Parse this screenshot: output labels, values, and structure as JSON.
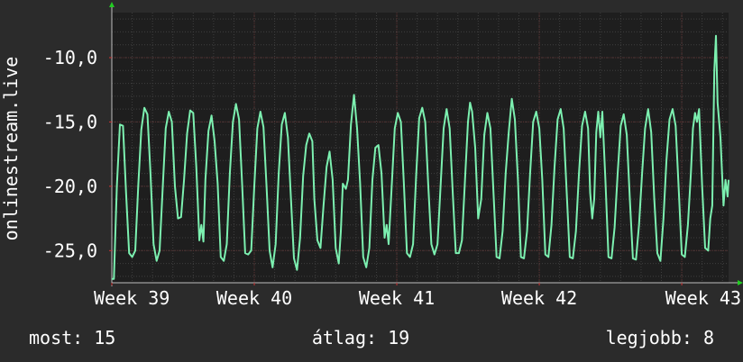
{
  "chart_data": {
    "type": "line",
    "ylabel": "onlinestream.live",
    "ylim": [
      -27.5,
      -6.5
    ],
    "y_ticks": [
      {
        "value": -10,
        "label": "-10,0"
      },
      {
        "value": -15,
        "label": "-15,0"
      },
      {
        "value": -20,
        "label": "-20,0"
      },
      {
        "value": -25,
        "label": "-25,0"
      }
    ],
    "x_ticks": [
      {
        "value": 0,
        "label": "Week 39"
      },
      {
        "value": 7,
        "label": "Week 40"
      },
      {
        "value": 14,
        "label": "Week 41"
      },
      {
        "value": 21,
        "label": "Week 42"
      },
      {
        "value": 28,
        "label": "Week 43"
      }
    ],
    "xlim": [
      0,
      30.3
    ],
    "grid": true,
    "colors": {
      "background": "#2b2b2b",
      "plot_background": "#1e1e1e",
      "grid": "#3f3f3f",
      "line": "#7cf0b0",
      "axis_arrow": "#22cc22",
      "tick_mark": "#cc3333"
    },
    "series": [
      {
        "values": [
          [
            0.0,
            -27.2
          ],
          [
            0.1,
            -27.2
          ],
          [
            0.25,
            -20
          ],
          [
            0.4,
            -15.2
          ],
          [
            0.55,
            -15.3
          ],
          [
            0.7,
            -20.5
          ],
          [
            0.85,
            -25.2
          ],
          [
            1.0,
            -25.5
          ],
          [
            1.15,
            -25.0
          ],
          [
            1.3,
            -20.0
          ],
          [
            1.45,
            -15.6
          ],
          [
            1.6,
            -13.9
          ],
          [
            1.75,
            -14.4
          ],
          [
            1.9,
            -19.0
          ],
          [
            2.05,
            -24.5
          ],
          [
            2.2,
            -25.8
          ],
          [
            2.35,
            -25.0
          ],
          [
            2.5,
            -20.2
          ],
          [
            2.65,
            -15.5
          ],
          [
            2.8,
            -14.2
          ],
          [
            2.95,
            -15.0
          ],
          [
            3.1,
            -20.0
          ],
          [
            3.25,
            -22.5
          ],
          [
            3.4,
            -22.4
          ],
          [
            3.55,
            -19.5
          ],
          [
            3.7,
            -15.9
          ],
          [
            3.85,
            -14.1
          ],
          [
            4.0,
            -14.3
          ],
          [
            4.15,
            -18.5
          ],
          [
            4.3,
            -24.2
          ],
          [
            4.4,
            -23.0
          ],
          [
            4.5,
            -24.3
          ],
          [
            4.6,
            -19.5
          ],
          [
            4.75,
            -15.7
          ],
          [
            4.9,
            -14.5
          ],
          [
            5.05,
            -16.5
          ],
          [
            5.2,
            -19.8
          ],
          [
            5.35,
            -25.5
          ],
          [
            5.5,
            -25.8
          ],
          [
            5.65,
            -24.5
          ],
          [
            5.8,
            -19.0
          ],
          [
            5.95,
            -15.0
          ],
          [
            6.1,
            -13.6
          ],
          [
            6.25,
            -14.8
          ],
          [
            6.4,
            -19.8
          ],
          [
            6.55,
            -25.2
          ],
          [
            6.7,
            -25.3
          ],
          [
            6.85,
            -25.0
          ],
          [
            7.0,
            -20.0
          ],
          [
            7.15,
            -15.5
          ],
          [
            7.3,
            -14.2
          ],
          [
            7.45,
            -15.4
          ],
          [
            7.6,
            -20.0
          ],
          [
            7.75,
            -25.0
          ],
          [
            7.9,
            -26.3
          ],
          [
            8.05,
            -24.5
          ],
          [
            8.2,
            -19.0
          ],
          [
            8.35,
            -15.2
          ],
          [
            8.5,
            -14.3
          ],
          [
            8.65,
            -16.2
          ],
          [
            8.8,
            -21.0
          ],
          [
            8.95,
            -25.6
          ],
          [
            9.1,
            -26.5
          ],
          [
            9.25,
            -24.0
          ],
          [
            9.4,
            -19.2
          ],
          [
            9.55,
            -16.8
          ],
          [
            9.7,
            -15.9
          ],
          [
            9.85,
            -16.5
          ],
          [
            9.95,
            -21.0
          ],
          [
            10.1,
            -24.2
          ],
          [
            10.25,
            -24.8
          ],
          [
            10.4,
            -21.5
          ],
          [
            10.55,
            -18.5
          ],
          [
            10.7,
            -17.3
          ],
          [
            10.85,
            -19.5
          ],
          [
            11.0,
            -24.8
          ],
          [
            11.15,
            -26.0
          ],
          [
            11.25,
            -23.5
          ],
          [
            11.35,
            -19.8
          ],
          [
            11.5,
            -20.2
          ],
          [
            11.6,
            -19.5
          ],
          [
            11.75,
            -15.2
          ],
          [
            11.9,
            -12.9
          ],
          [
            12.05,
            -15.5
          ],
          [
            12.2,
            -19.8
          ],
          [
            12.35,
            -25.5
          ],
          [
            12.5,
            -26.3
          ],
          [
            12.65,
            -24.8
          ],
          [
            12.8,
            -19.5
          ],
          [
            12.95,
            -17.0
          ],
          [
            13.1,
            -16.8
          ],
          [
            13.25,
            -19.0
          ],
          [
            13.4,
            -24.0
          ],
          [
            13.5,
            -23.0
          ],
          [
            13.6,
            -24.5
          ],
          [
            13.75,
            -20.0
          ],
          [
            13.9,
            -15.5
          ],
          [
            14.05,
            -14.3
          ],
          [
            14.2,
            -15.0
          ],
          [
            14.35,
            -19.8
          ],
          [
            14.5,
            -25.2
          ],
          [
            14.65,
            -25.5
          ],
          [
            14.8,
            -24.5
          ],
          [
            14.95,
            -19.2
          ],
          [
            15.1,
            -14.7
          ],
          [
            15.25,
            -13.9
          ],
          [
            15.4,
            -15.0
          ],
          [
            15.55,
            -20.0
          ],
          [
            15.7,
            -24.5
          ],
          [
            15.85,
            -25.3
          ],
          [
            16.0,
            -24.5
          ],
          [
            16.15,
            -20.0
          ],
          [
            16.3,
            -15.5
          ],
          [
            16.45,
            -14.0
          ],
          [
            16.6,
            -15.5
          ],
          [
            16.75,
            -20.5
          ],
          [
            16.9,
            -25.2
          ],
          [
            17.05,
            -25.2
          ],
          [
            17.2,
            -24.2
          ],
          [
            17.35,
            -19.5
          ],
          [
            17.5,
            -15.0
          ],
          [
            17.6,
            -13.5
          ],
          [
            17.7,
            -14.2
          ],
          [
            17.85,
            -17.0
          ],
          [
            18.0,
            -22.5
          ],
          [
            18.15,
            -21.0
          ],
          [
            18.3,
            -16.0
          ],
          [
            18.45,
            -14.3
          ],
          [
            18.6,
            -15.5
          ],
          [
            18.75,
            -20.5
          ],
          [
            18.9,
            -25.5
          ],
          [
            19.05,
            -25.6
          ],
          [
            19.2,
            -23.5
          ],
          [
            19.35,
            -19.0
          ],
          [
            19.5,
            -15.8
          ],
          [
            19.65,
            -13.2
          ],
          [
            19.8,
            -14.8
          ],
          [
            19.95,
            -19.5
          ],
          [
            20.1,
            -25.5
          ],
          [
            20.25,
            -25.6
          ],
          [
            20.4,
            -23.5
          ],
          [
            20.55,
            -19.0
          ],
          [
            20.7,
            -15.0
          ],
          [
            20.85,
            -14.2
          ],
          [
            21.0,
            -15.5
          ],
          [
            21.15,
            -19.5
          ],
          [
            21.3,
            -25.3
          ],
          [
            21.45,
            -25.5
          ],
          [
            21.6,
            -23.0
          ],
          [
            21.75,
            -18.5
          ],
          [
            21.9,
            -14.8
          ],
          [
            22.05,
            -14.0
          ],
          [
            22.2,
            -15.5
          ],
          [
            22.35,
            -20.5
          ],
          [
            22.5,
            -25.5
          ],
          [
            22.65,
            -25.6
          ],
          [
            22.8,
            -23.5
          ],
          [
            22.95,
            -19.0
          ],
          [
            23.1,
            -15.3
          ],
          [
            23.25,
            -14.2
          ],
          [
            23.4,
            -15.5
          ],
          [
            23.5,
            -20.5
          ],
          [
            23.6,
            -22.5
          ],
          [
            23.7,
            -21.0
          ],
          [
            23.8,
            -15.8
          ],
          [
            23.9,
            -14.2
          ],
          [
            24.0,
            -16.2
          ],
          [
            24.1,
            -14.2
          ],
          [
            24.25,
            -19.5
          ],
          [
            24.4,
            -25.5
          ],
          [
            24.55,
            -25.6
          ],
          [
            24.7,
            -23.2
          ],
          [
            24.85,
            -19.0
          ],
          [
            25.0,
            -15.3
          ],
          [
            25.15,
            -14.4
          ],
          [
            25.3,
            -16.0
          ],
          [
            25.45,
            -21.0
          ],
          [
            25.6,
            -25.6
          ],
          [
            25.75,
            -25.7
          ],
          [
            25.9,
            -23.0
          ],
          [
            26.05,
            -19.0
          ],
          [
            26.2,
            -15.5
          ],
          [
            26.35,
            -14.0
          ],
          [
            26.5,
            -15.8
          ],
          [
            26.65,
            -21.0
          ],
          [
            26.8,
            -25.2
          ],
          [
            26.95,
            -25.8
          ],
          [
            27.1,
            -22.5
          ],
          [
            27.25,
            -18.0
          ],
          [
            27.4,
            -14.8
          ],
          [
            27.55,
            -14.0
          ],
          [
            27.7,
            -15.3
          ],
          [
            27.85,
            -20.2
          ],
          [
            28.0,
            -25.3
          ],
          [
            28.15,
            -25.5
          ],
          [
            28.3,
            -23.0
          ],
          [
            28.45,
            -19.0
          ],
          [
            28.55,
            -15.5
          ],
          [
            28.65,
            -14.3
          ],
          [
            28.75,
            -15.0
          ],
          [
            28.85,
            -14.0
          ],
          [
            29.0,
            -20.0
          ],
          [
            29.15,
            -24.8
          ],
          [
            29.3,
            -25.0
          ],
          [
            29.4,
            -22.5
          ],
          [
            29.5,
            -21.5
          ],
          [
            29.6,
            -11.0
          ],
          [
            29.68,
            -8.3
          ],
          [
            29.76,
            -13.5
          ],
          [
            29.9,
            -16.2
          ],
          [
            30.05,
            -21.5
          ],
          [
            30.15,
            -19.5
          ],
          [
            30.25,
            -20.8
          ],
          [
            30.3,
            -19.5
          ]
        ]
      }
    ]
  },
  "footer": {
    "current": "most: 15",
    "average": "átlag: 19",
    "best": "legjobb: 8"
  }
}
